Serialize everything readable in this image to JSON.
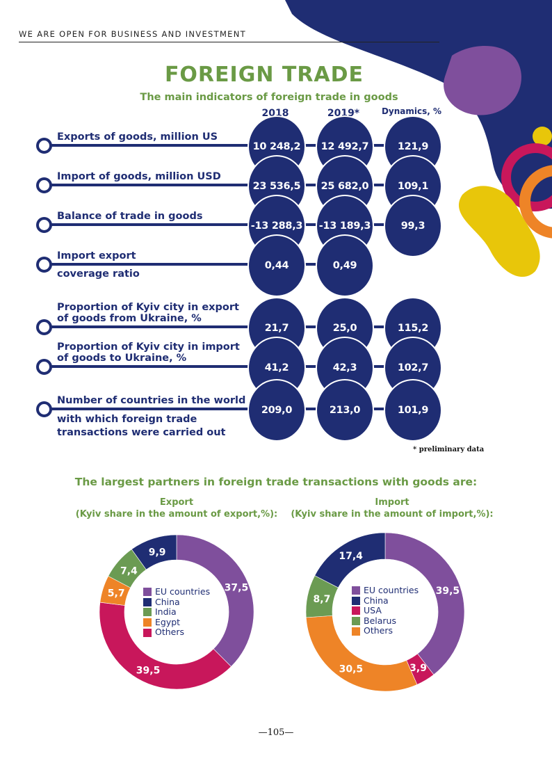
{
  "header": "WE ARE OPEN FOR BUSINESS AND INVESTMENT",
  "title": "FOREIGN TRADE",
  "subtitle": "The main indicators of foreign trade in goods",
  "columns": [
    "2018",
    "2019*",
    "Dynamics, %"
  ],
  "rows": [
    {
      "above": [
        "Exports of goods, million US"
      ],
      "below": [],
      "values": [
        "10 248,2",
        "12 492,7",
        "121,9"
      ]
    },
    {
      "above": [
        "Import of goods, million USD"
      ],
      "below": [],
      "values": [
        "23 536,5",
        "25 682,0",
        "109,1"
      ]
    },
    {
      "above": [
        "Balance of trade in goods"
      ],
      "below": [],
      "values": [
        "-13 288,3",
        "-13 189,3",
        "99,3"
      ]
    },
    {
      "above": [
        "Import export"
      ],
      "below": [
        "coverage ratio"
      ],
      "values": [
        "0,44",
        "0,49"
      ]
    },
    {
      "above": [
        "Proportion of Kyiv city in export",
        "of goods from Ukraine, %"
      ],
      "below": [],
      "values": [
        "21,7",
        "25,0",
        "115,2"
      ]
    },
    {
      "above": [
        "Proportion of Kyiv city in import",
        "of goods to Ukraine, %"
      ],
      "below": [],
      "values": [
        "41,2",
        "42,3",
        "102,7"
      ]
    },
    {
      "above": [
        "Number of countries in the world"
      ],
      "below": [
        "with which foreign trade",
        "transactions were carried out"
      ],
      "values": [
        "209,0",
        "213,0",
        "101,9"
      ]
    }
  ],
  "note": "* preliminary data",
  "partners_heading": "The largest partners in foreign trade transactions with goods are:",
  "colors": {
    "navy": "#1f2d73",
    "green_title": "#6a9a45",
    "purple": "#7f4f9c",
    "magenta": "#c8175b",
    "green": "#6b9b53",
    "orange": "#ee8427",
    "yellow": "#e8c60a"
  },
  "chart_data": [
    {
      "type": "pie",
      "title": "Export",
      "subtitle": "(Kyiv share in the amount of export,%):",
      "legend": [
        "EU countries",
        "China",
        "India",
        "Egypt",
        "Others"
      ],
      "slices": [
        {
          "name": "EU countries",
          "value": 37.5,
          "label": "37,5",
          "color": "#7f4f9c"
        },
        {
          "name": "Others",
          "value": 39.5,
          "label": "39,5",
          "color": "#c8175b"
        },
        {
          "name": "Egypt",
          "value": 5.7,
          "label": "5,7",
          "color": "#ee8427"
        },
        {
          "name": "India",
          "value": 7.4,
          "label": "7,4",
          "color": "#6b9b53"
        },
        {
          "name": "China",
          "value": 9.9,
          "label": "9,9",
          "color": "#1f2d73"
        }
      ]
    },
    {
      "type": "pie",
      "title": "Import",
      "subtitle": "(Kyiv share in the amount of import,%):",
      "legend": [
        "EU countries",
        "China",
        "USA",
        "Belarus",
        "Others"
      ],
      "slices": [
        {
          "name": "EU countries",
          "value": 39.5,
          "label": "39,5",
          "color": "#7f4f9c"
        },
        {
          "name": "USA",
          "value": 3.9,
          "label": "3,9",
          "color": "#c8175b"
        },
        {
          "name": "Others",
          "value": 30.5,
          "label": "30,5",
          "color": "#ee8427"
        },
        {
          "name": "Belarus",
          "value": 8.7,
          "label": "8,7",
          "color": "#6b9b53"
        },
        {
          "name": "China",
          "value": 17.4,
          "label": "17,4",
          "color": "#1f2d73"
        }
      ]
    }
  ],
  "page_number": "—105—"
}
